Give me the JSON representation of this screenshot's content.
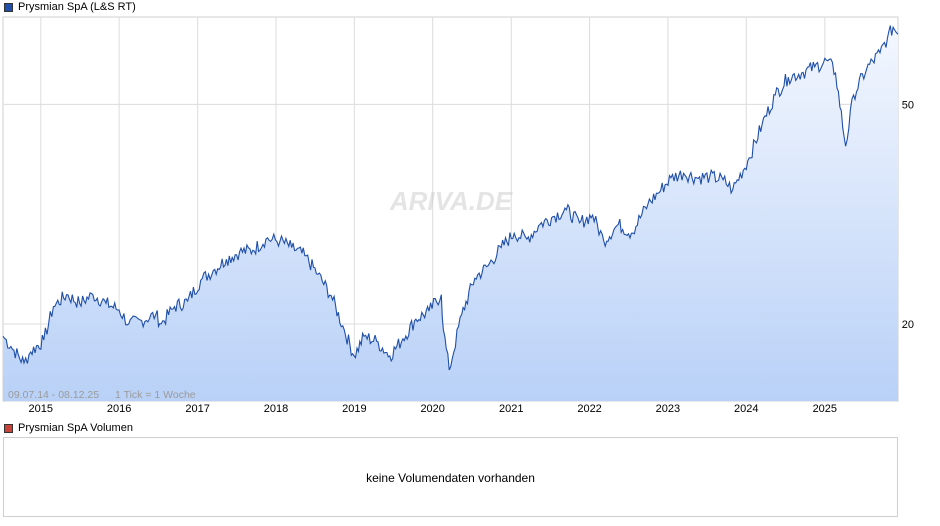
{
  "legend": {
    "price_label": "Prysmian SpA (L&S RT)",
    "price_color": "#1f4fa8",
    "volume_label": "Prysmian SpA Volumen",
    "volume_color": "#c8443a"
  },
  "watermark": "ARIVA.DE",
  "date_range": "09.07.14 - 08.12.25",
  "tick_info": "1 Tick = 1 Woche",
  "volume_message": "keine Volumendaten vorhanden",
  "chart_data": {
    "type": "area",
    "title": "Prysmian SpA (L&S RT)",
    "y_scale": "log",
    "ylim": [
      14.5,
      72
    ],
    "y_ticks": [
      20,
      50
    ],
    "x_ticks": [
      "2015",
      "2016",
      "2017",
      "2018",
      "2019",
      "2020",
      "2021",
      "2022",
      "2023",
      "2024",
      "2025"
    ],
    "grid": true,
    "line_color": "#1f4fa8",
    "fill_color": "#b9d1f7",
    "series": [
      {
        "name": "Prysmian SpA (L&S RT)",
        "x": [
          "2014-07-09",
          "2014-08-15",
          "2014-10-15",
          "2014-11-15",
          "2015-01-15",
          "2015-03-01",
          "2015-05-01",
          "2015-07-01",
          "2015-09-01",
          "2015-11-01",
          "2016-01-01",
          "2016-02-15",
          "2016-04-15",
          "2016-06-20",
          "2016-07-15",
          "2016-09-15",
          "2016-11-15",
          "2017-01-15",
          "2017-03-15",
          "2017-05-15",
          "2017-07-15",
          "2017-09-15",
          "2017-11-15",
          "2018-01-20",
          "2018-03-15",
          "2018-05-15",
          "2018-07-15",
          "2018-09-15",
          "2018-11-15",
          "2018-12-31",
          "2019-02-15",
          "2019-04-15",
          "2019-06-15",
          "2019-08-15",
          "2019-10-15",
          "2019-12-15",
          "2020-02-10",
          "2020-02-20",
          "2020-03-18",
          "2020-05-15",
          "2020-07-15",
          "2020-09-15",
          "2020-11-15",
          "2021-01-15",
          "2021-03-15",
          "2021-05-15",
          "2021-07-15",
          "2021-09-15",
          "2021-11-15",
          "2022-01-15",
          "2022-03-08",
          "2022-05-15",
          "2022-07-15",
          "2022-09-30",
          "2022-11-15",
          "2023-01-15",
          "2023-03-15",
          "2023-05-15",
          "2023-07-15",
          "2023-09-15",
          "2023-10-30",
          "2024-01-15",
          "2024-03-15",
          "2024-05-15",
          "2024-07-15",
          "2024-09-15",
          "2024-11-15",
          "2025-01-15",
          "2025-02-20",
          "2025-04-08",
          "2025-05-15",
          "2025-07-15",
          "2025-09-15",
          "2025-10-20",
          "2025-11-15",
          "2025-12-08"
        ],
        "values": [
          19.0,
          18.2,
          17.0,
          17.8,
          18.7,
          21.5,
          22.6,
          21.8,
          22.6,
          21.8,
          21.2,
          20.0,
          20.3,
          20.8,
          20.0,
          21.5,
          22.0,
          24.0,
          25.0,
          26.2,
          27.0,
          27.2,
          28.5,
          28.3,
          27.5,
          26.6,
          24.6,
          22.5,
          19.5,
          17.5,
          19.0,
          18.6,
          17.5,
          18.8,
          20.4,
          21.1,
          22.6,
          19.5,
          16.5,
          20.8,
          24.2,
          25.5,
          27.5,
          29.2,
          28.5,
          30.3,
          31.3,
          32.2,
          30.5,
          31.5,
          28.3,
          30.3,
          29.2,
          33.0,
          34.5,
          36.8,
          37.5,
          36.8,
          37.0,
          36.5,
          35.0,
          40.0,
          46.0,
          52.0,
          56.0,
          57.0,
          58.5,
          60.0,
          57.0,
          42.0,
          52.0,
          58.0,
          62.0,
          66.0,
          69.0,
          67.0
        ]
      }
    ]
  }
}
